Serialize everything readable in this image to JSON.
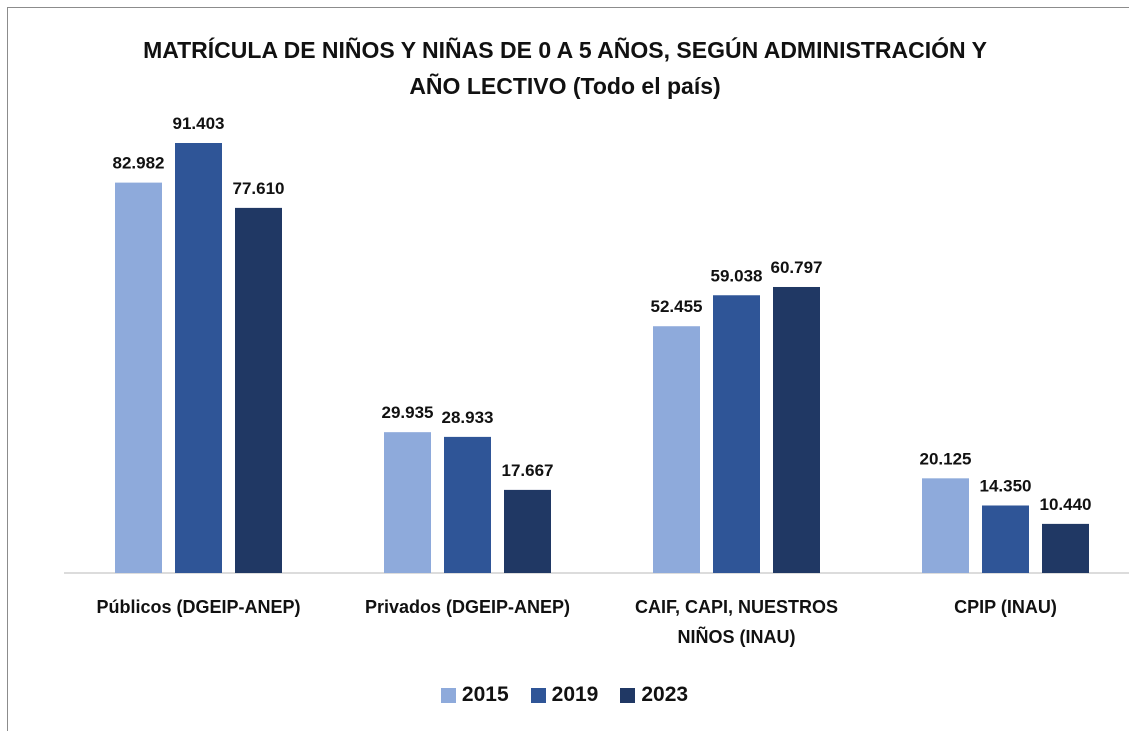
{
  "chart_data": {
    "type": "bar",
    "title": "MATRÍCULA DE NIÑOS Y NIÑAS DE 0 A 5 AÑOS, SEGÚN ADMINISTRACIÓN Y AÑO LECTIVO  (Todo el país)",
    "categories": [
      "Públicos (DGEIP-ANEP)",
      "Privados (DGEIP-ANEP)",
      "CAIF, CAPI, NUESTROS NIÑOS (INAU)",
      "CPIP (INAU)"
    ],
    "series": [
      {
        "name": "2015",
        "color": "#8eaadb",
        "values": [
          82982,
          29935,
          52455,
          20125
        ],
        "value_labels": [
          "82.982",
          "29.935",
          "52.455",
          "20.125"
        ]
      },
      {
        "name": "2019",
        "color": "#2f5597",
        "values": [
          91403,
          28933,
          59038,
          14350
        ],
        "value_labels": [
          "91.403",
          "28.933",
          "59.038",
          "14.350"
        ]
      },
      {
        "name": "2023",
        "color": "#203864",
        "values": [
          77610,
          17667,
          60797,
          10440
        ],
        "value_labels": [
          "77.610",
          "17.667",
          "60.797",
          "10.440"
        ]
      }
    ]
  }
}
